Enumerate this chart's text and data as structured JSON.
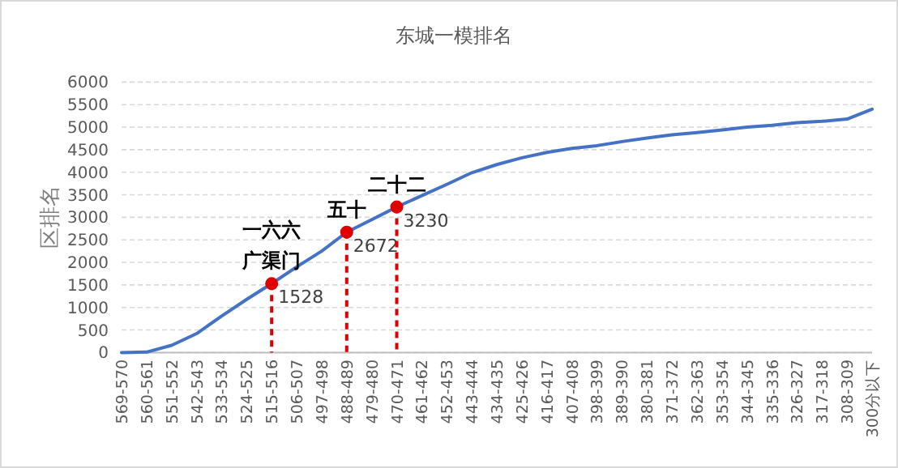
{
  "chart_data": {
    "type": "line",
    "title": "东城一模排名",
    "ylabel": "区排名",
    "categories": [
      "569-570",
      "560-561",
      "551-552",
      "542-543",
      "533-534",
      "524-525",
      "515-516",
      "506-507",
      "497-498",
      "488-489",
      "479-480",
      "470-471",
      "461-462",
      "452-453",
      "443-444",
      "434-435",
      "425-426",
      "416-417",
      "407-408",
      "398-399",
      "389-390",
      "380-381",
      "371-372",
      "362-363",
      "353-354",
      "344-345",
      "335-336",
      "326-327",
      "317-318",
      "308-309",
      "300分以下"
    ],
    "series": [
      {
        "color": "#4472c4",
        "marker": "none",
        "values": [
          0,
          10,
          160,
          420,
          810,
          1180,
          1530,
          1900,
          2250,
          2670,
          2950,
          3230,
          3480,
          3730,
          3990,
          4170,
          4320,
          4440,
          4530,
          4590,
          4680,
          4760,
          4830,
          4880,
          4940,
          5000,
          5040,
          5100,
          5130,
          5180,
          5400
        ]
      },
      {
        "type": "scatter",
        "color": "#e00000",
        "marker": "circle",
        "line_style": "dashed",
        "x": [
          "515-516",
          "488-489",
          "470-471"
        ],
        "values": [
          1528,
          2672,
          3230
        ],
        "value_labels": [
          "1528",
          "2672",
          "3230"
        ]
      }
    ],
    "annotations": [
      {
        "text": "一六六",
        "x": "515-516",
        "y": 1528
      },
      {
        "text": "广渠门",
        "x": "515-516",
        "y": 1528
      },
      {
        "text": "五十",
        "x": "488-489",
        "y": 2672
      },
      {
        "text": "二十二",
        "x": "470-471",
        "y": 3230
      }
    ],
    "ylim": [
      0,
      6000
    ],
    "yticks": [
      0,
      500,
      1000,
      1500,
      2000,
      2500,
      3000,
      3500,
      4000,
      4500,
      5000,
      5500,
      6000
    ],
    "grid": "y"
  }
}
